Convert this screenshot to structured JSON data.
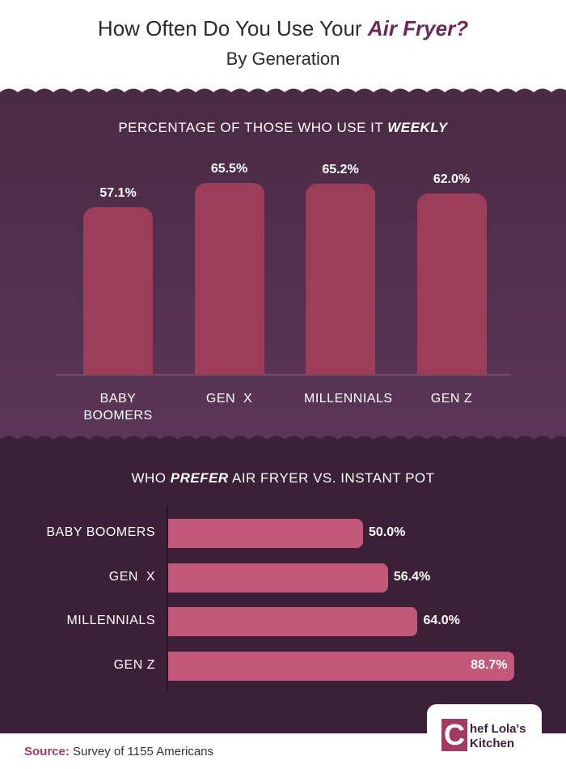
{
  "header": {
    "title_parts": [
      "How Often Do You Use Your ",
      "Air Fryer?"
    ],
    "subtitle": "By Generation"
  },
  "chart_data": [
    {
      "type": "bar",
      "title_parts": [
        "PERCENTAGE OF THOSE WHO USE IT ",
        "WEEKLY"
      ],
      "categories": [
        "BABY BOOMERS",
        "GEN  X",
        "MILLENNIALS",
        "GEN Z"
      ],
      "values": [
        57.1,
        65.5,
        65.2,
        62.0
      ],
      "value_labels": [
        "57.1%",
        "65.5%",
        "65.2%",
        "62.0%"
      ],
      "color": "#9c3d5a"
    },
    {
      "type": "hbar",
      "title_parts": [
        "WHO ",
        "PREFER",
        " AIR FRYER VS. INSTANT POT"
      ],
      "categories": [
        "BABY BOOMERS",
        "GEN  X",
        "MILLENNIALS",
        "GEN Z"
      ],
      "values": [
        50.0,
        56.4,
        64.0,
        88.7
      ],
      "value_labels": [
        "50.0%",
        "56.4%",
        "64.0%",
        "88.7%"
      ],
      "color": "#c4587a"
    }
  ],
  "footer": {
    "source_label": "Source:",
    "source_text": " Survey of 1155 Americans"
  },
  "logo": {
    "initial": "C",
    "line1": "hef Lola's",
    "line2": "Kitchen"
  }
}
